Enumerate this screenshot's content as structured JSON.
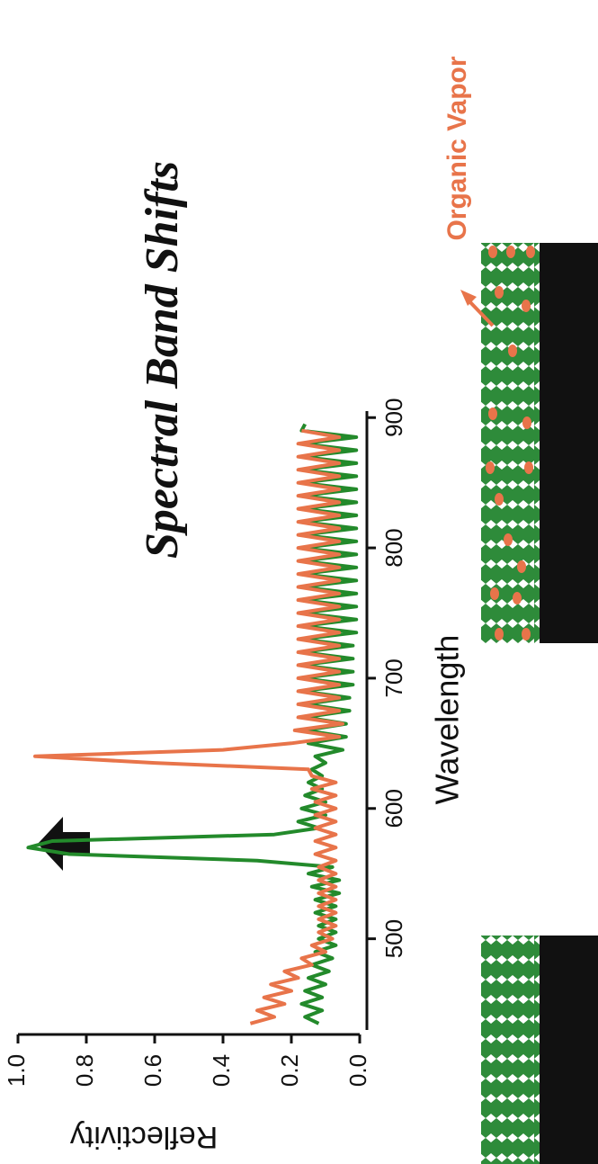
{
  "chart_data": {
    "type": "line",
    "title": "Spectral Band Shifts",
    "x_label": "Wavelength",
    "y_label": "Reflectivity",
    "annotation": "Organic Vapor",
    "xlim": [
      430,
      905
    ],
    "xticks": [
      500,
      600,
      700,
      800,
      900
    ],
    "ylim": [
      0,
      1
    ],
    "yticks": [
      {
        "value": 0,
        "label": "0.0"
      },
      {
        "value": 0.2,
        "label": "0.2"
      },
      {
        "value": 0.4,
        "label": "0.4"
      },
      {
        "value": 0.6,
        "label": "0.6"
      },
      {
        "value": 0.8,
        "label": "0.8"
      },
      {
        "value": 1,
        "label": "1.0"
      }
    ],
    "series": [
      {
        "color": "#238a2b",
        "x": [
          435,
          440,
          445,
          450,
          455,
          460,
          465,
          470,
          475,
          480,
          485,
          490,
          495,
          500,
          505,
          510,
          515,
          520,
          525,
          530,
          535,
          540,
          545,
          550,
          555,
          560,
          565,
          570,
          575,
          580,
          585,
          590,
          595,
          600,
          605,
          610,
          615,
          620,
          625,
          630,
          635,
          640,
          645,
          650,
          655,
          660,
          665,
          670,
          675,
          680,
          685,
          690,
          695,
          700,
          705,
          710,
          715,
          720,
          725,
          730,
          735,
          740,
          745,
          750,
          755,
          760,
          765,
          770,
          775,
          780,
          785,
          790,
          795,
          800,
          805,
          810,
          815,
          820,
          825,
          830,
          835,
          840,
          845,
          850,
          855,
          860,
          865,
          870,
          875,
          880,
          885,
          890,
          895
        ],
        "values": [
          0.12,
          0.16,
          0.11,
          0.17,
          0.11,
          0.16,
          0.1,
          0.15,
          0.09,
          0.14,
          0.08,
          0.13,
          0.07,
          0.12,
          0.07,
          0.12,
          0.07,
          0.13,
          0.07,
          0.13,
          0.06,
          0.14,
          0.06,
          0.15,
          0.08,
          0.3,
          0.85,
          0.97,
          0.9,
          0.25,
          0.12,
          0.18,
          0.1,
          0.17,
          0.1,
          0.16,
          0.11,
          0.15,
          0.11,
          0.14,
          0.1,
          0.13,
          0.05,
          0.15,
          0.04,
          0.16,
          0.04,
          0.16,
          0.03,
          0.16,
          0.03,
          0.17,
          0.02,
          0.17,
          0.02,
          0.17,
          0.02,
          0.17,
          0.02,
          0.17,
          0.01,
          0.17,
          0.01,
          0.17,
          0.01,
          0.17,
          0.01,
          0.17,
          0.01,
          0.17,
          0.01,
          0.17,
          0.01,
          0.17,
          0.01,
          0.17,
          0.01,
          0.17,
          0.01,
          0.17,
          0.01,
          0.17,
          0.01,
          0.17,
          0.01,
          0.17,
          0.01,
          0.17,
          0.01,
          0.17,
          0.01,
          0.17,
          0.16
        ]
      },
      {
        "color": "#e8744a",
        "x": [
          435,
          440,
          445,
          450,
          455,
          460,
          465,
          470,
          475,
          480,
          485,
          490,
          495,
          500,
          505,
          510,
          515,
          520,
          525,
          530,
          535,
          540,
          545,
          550,
          555,
          560,
          565,
          570,
          575,
          580,
          585,
          590,
          595,
          600,
          605,
          610,
          615,
          620,
          625,
          630,
          635,
          640,
          645,
          650,
          655,
          660,
          665,
          670,
          675,
          680,
          685,
          690,
          695,
          700,
          705,
          710,
          715,
          720,
          725,
          730,
          735,
          740,
          745,
          750,
          755,
          760,
          765,
          770,
          775,
          780,
          785,
          790,
          795,
          800,
          805,
          810,
          815,
          820,
          825,
          830,
          835,
          840,
          845,
          850,
          855,
          860,
          865,
          870,
          875,
          880,
          885,
          890
        ],
        "values": [
          0.32,
          0.25,
          0.3,
          0.22,
          0.28,
          0.2,
          0.26,
          0.18,
          0.22,
          0.14,
          0.17,
          0.1,
          0.14,
          0.08,
          0.12,
          0.07,
          0.12,
          0.07,
          0.12,
          0.07,
          0.12,
          0.07,
          0.12,
          0.07,
          0.12,
          0.07,
          0.13,
          0.07,
          0.13,
          0.07,
          0.13,
          0.07,
          0.13,
          0.07,
          0.13,
          0.07,
          0.14,
          0.07,
          0.14,
          0.15,
          0.6,
          0.95,
          0.4,
          0.2,
          0.06,
          0.19,
          0.05,
          0.18,
          0.06,
          0.18,
          0.06,
          0.18,
          0.06,
          0.18,
          0.06,
          0.18,
          0.06,
          0.18,
          0.06,
          0.18,
          0.06,
          0.18,
          0.06,
          0.18,
          0.06,
          0.18,
          0.06,
          0.18,
          0.06,
          0.18,
          0.06,
          0.18,
          0.06,
          0.18,
          0.06,
          0.18,
          0.06,
          0.18,
          0.06,
          0.18,
          0.06,
          0.18,
          0.06,
          0.18,
          0.06,
          0.18,
          0.06,
          0.18,
          0.06,
          0.18,
          0.06,
          0.17
        ]
      }
    ]
  }
}
